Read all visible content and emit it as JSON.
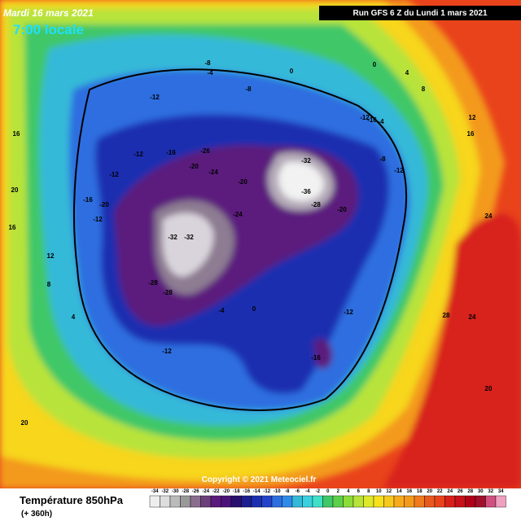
{
  "header": {
    "date": "Mardi 16 mars 2021",
    "time": "7:00 locale",
    "run": "Run GFS 6 Z du Lundi 1 mars 2021"
  },
  "footer": {
    "title": "Température 850hPa",
    "horizon": "(+ 360h)",
    "copyright": "Copyright © 2021 Meteociel.fr"
  },
  "legend": {
    "ticks": [
      -34,
      -32,
      -30,
      -28,
      -26,
      -24,
      -22,
      -20,
      -18,
      -16,
      -14,
      -12,
      -10,
      -8,
      -6,
      -4,
      -2,
      0,
      2,
      4,
      6,
      8,
      10,
      12,
      14,
      16,
      18,
      20,
      22,
      24,
      26,
      28,
      30,
      32,
      34
    ]
  },
  "map_labels": [
    -8,
    -4,
    0,
    -8,
    -12,
    -16,
    -12,
    -16,
    -26,
    -20,
    -24,
    -20,
    -32,
    -36,
    -28,
    -20,
    -12,
    -12,
    -16,
    -20,
    -24,
    -32,
    -32,
    -28,
    -28,
    -12,
    -12,
    -16,
    -4,
    0,
    4,
    8,
    12,
    16,
    20,
    24,
    24,
    28,
    20,
    16,
    12,
    8,
    4,
    0,
    -4,
    -8,
    -12,
    -12,
    16,
    20
  ]
}
